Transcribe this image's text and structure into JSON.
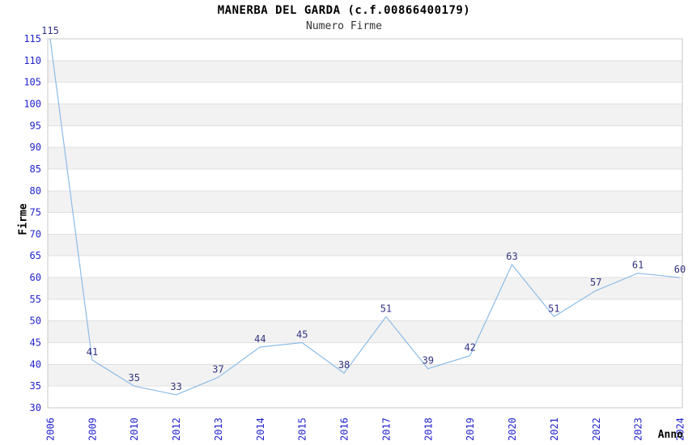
{
  "header": {
    "title": "MANERBA DEL GARDA (c.f.00866400179)",
    "subtitle": "Numero Firme"
  },
  "axes": {
    "y_label": "Firme",
    "x_label": "Anno"
  },
  "chart_data": {
    "type": "line",
    "title": "MANERBA DEL GARDA (c.f.00866400179)",
    "subtitle": "Numero Firme",
    "xlabel": "Anno",
    "ylabel": "Firme",
    "categories": [
      "2006",
      "2009",
      "2010",
      "2012",
      "2013",
      "2014",
      "2015",
      "2016",
      "2017",
      "2018",
      "2019",
      "2020",
      "2021",
      "2022",
      "2023",
      "2024"
    ],
    "values": [
      115,
      41,
      35,
      33,
      37,
      44,
      45,
      38,
      51,
      39,
      42,
      63,
      51,
      57,
      61,
      60
    ],
    "ylim": [
      30,
      115
    ],
    "ytick_step": 5,
    "grid": true,
    "legend": false,
    "point_labels_visible": true,
    "colors": {
      "line": "#8cbce8",
      "tick_labels": "#2323cc",
      "point_labels": "#333380",
      "band": "#ffffff",
      "band_alt": "#f2f2f2",
      "gridline": "#e0e0e0",
      "plot_border": "#c8c8c8",
      "title": "#000000",
      "subtitle": "#333333"
    }
  }
}
